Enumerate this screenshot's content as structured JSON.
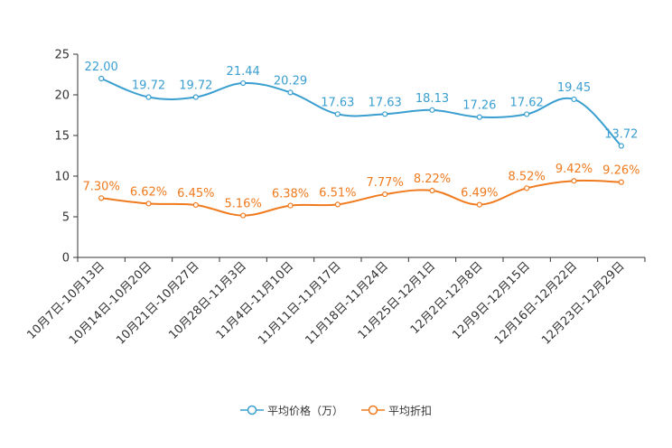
{
  "chart_data": {
    "type": "line",
    "categories": [
      "10月7日-10月13日",
      "10月14日-10月20日",
      "10月21日-10月27日",
      "10月28日-11月3日",
      "11月4日-11月10日",
      "11月11日-11月17日",
      "11月18日-11月24日",
      "11月25日-12月1日",
      "12月2日-12月8日",
      "12月9日-12月15日",
      "12月16日-12月22日",
      "12月23日-12月29日"
    ],
    "ylim": [
      0,
      25
    ],
    "yticks": [
      0,
      5,
      10,
      15,
      20,
      25
    ],
    "ytick_labels": [
      "0",
      "5",
      "10",
      "15",
      "20",
      "25"
    ],
    "series": [
      {
        "name": "平均价格（万）",
        "color": "#3a9fd0",
        "values": [
          22.0,
          19.72,
          19.72,
          21.44,
          20.29,
          17.63,
          17.63,
          18.13,
          17.26,
          17.62,
          19.45,
          13.72
        ],
        "labels": [
          "22.00",
          "19.72",
          "19.72",
          "21.44",
          "20.29",
          "17.63",
          "17.63",
          "18.13",
          "17.26",
          "17.62",
          "19.45",
          "13.72"
        ]
      },
      {
        "name": "平均折扣",
        "color": "#f07a1e",
        "values": [
          7.3,
          6.62,
          6.45,
          5.16,
          6.38,
          6.51,
          7.77,
          8.22,
          6.49,
          8.52,
          9.42,
          9.26
        ],
        "labels": [
          "7.30%",
          "6.62%",
          "6.45%",
          "5.16%",
          "6.38%",
          "6.51%",
          "7.77%",
          "8.22%",
          "6.49%",
          "8.52%",
          "9.42%",
          "9.26%"
        ]
      }
    ],
    "legend_position": "bottom-center"
  }
}
